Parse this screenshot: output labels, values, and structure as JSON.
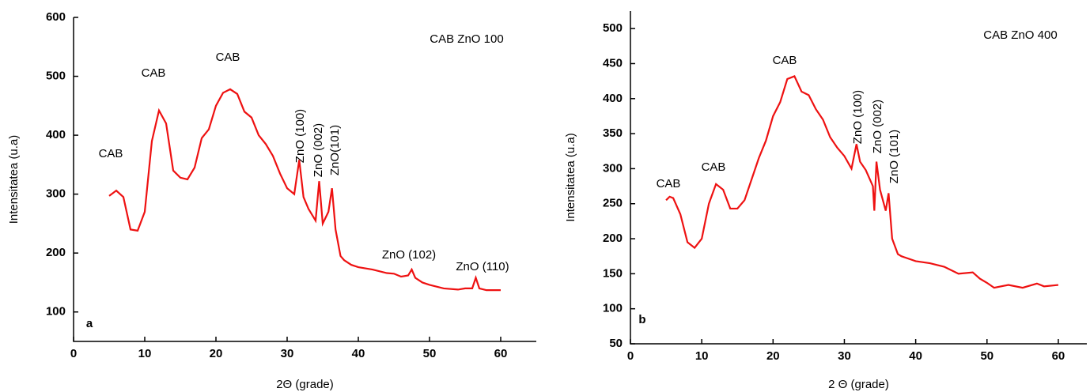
{
  "chart_data": [
    {
      "type": "line",
      "xlabel": "2Θ (grade)",
      "ylabel": "Intensitatea  (u.a)",
      "xlim": [
        0,
        65
      ],
      "ylim": [
        50,
        600
      ],
      "xticks": [
        0,
        10,
        20,
        30,
        40,
        50,
        60
      ],
      "yticks": [
        100,
        200,
        300,
        400,
        500,
        600
      ],
      "annotations": [
        "CAB",
        "CAB",
        "CAB",
        "ZnO (100)",
        "ZnO (002)",
        "ZnO(101)",
        "ZnO (102)",
        "ZnO (110)",
        "CAB ZnO 100",
        "a"
      ],
      "series": [
        {
          "color": "#ee1111",
          "x": [
            5,
            6,
            7,
            8,
            9,
            10,
            11,
            12,
            13,
            14,
            15,
            16,
            17,
            18,
            19,
            20,
            21,
            22,
            23,
            24,
            25,
            26,
            27,
            28,
            29,
            30,
            31,
            31.7,
            32.3,
            33,
            34,
            34.5,
            35,
            35.8,
            36.3,
            36.8,
            37.5,
            38,
            39,
            40,
            42,
            44,
            45,
            46,
            47,
            47.5,
            48,
            49,
            50,
            52,
            54,
            55,
            56,
            56.5,
            57,
            58,
            60
          ],
          "values": [
            297,
            306,
            295,
            240,
            238,
            270,
            390,
            442,
            420,
            340,
            328,
            325,
            345,
            395,
            410,
            450,
            472,
            478,
            470,
            440,
            430,
            400,
            385,
            365,
            335,
            310,
            300,
            358,
            295,
            275,
            255,
            322,
            250,
            270,
            310,
            240,
            195,
            188,
            180,
            176,
            172,
            166,
            165,
            160,
            162,
            172,
            158,
            150,
            146,
            140,
            138,
            140,
            140,
            158,
            140,
            137,
            137
          ]
        }
      ]
    },
    {
      "type": "line",
      "xlabel": "2 Θ (grade)",
      "ylabel": "Intensitatea (u.a)",
      "xlim": [
        0,
        64
      ],
      "ylim": [
        50,
        525
      ],
      "xticks": [
        0,
        10,
        20,
        30,
        40,
        50,
        60
      ],
      "yticks": [
        50,
        100,
        150,
        200,
        250,
        300,
        350,
        400,
        450,
        500
      ],
      "annotations": [
        "CAB",
        "CAB",
        "CAB",
        "ZnO (100)",
        "ZnO (002)",
        "ZnO (101)",
        "CAB ZnO 400",
        "b"
      ],
      "series": [
        {
          "color": "#ee1111",
          "x": [
            5,
            5.5,
            6,
            7,
            8,
            9,
            10,
            11,
            12,
            13,
            14,
            15,
            16,
            17,
            18,
            19,
            20,
            21,
            22,
            23,
            24,
            25,
            26,
            27,
            28,
            29,
            30,
            31,
            31.7,
            32.2,
            33,
            34,
            34.2,
            34.5,
            35,
            35.8,
            36.2,
            36.7,
            37.5,
            38,
            40,
            42,
            44,
            46,
            48,
            49,
            50,
            51,
            53,
            55,
            57,
            58,
            60
          ],
          "values": [
            255,
            260,
            258,
            235,
            195,
            187,
            200,
            250,
            278,
            270,
            243,
            243,
            255,
            285,
            315,
            340,
            375,
            395,
            428,
            432,
            410,
            405,
            385,
            370,
            345,
            330,
            318,
            300,
            335,
            310,
            298,
            275,
            240,
            310,
            270,
            240,
            265,
            200,
            178,
            175,
            168,
            165,
            160,
            150,
            152,
            143,
            137,
            130,
            134,
            130,
            136,
            132,
            134
          ]
        }
      ]
    }
  ]
}
